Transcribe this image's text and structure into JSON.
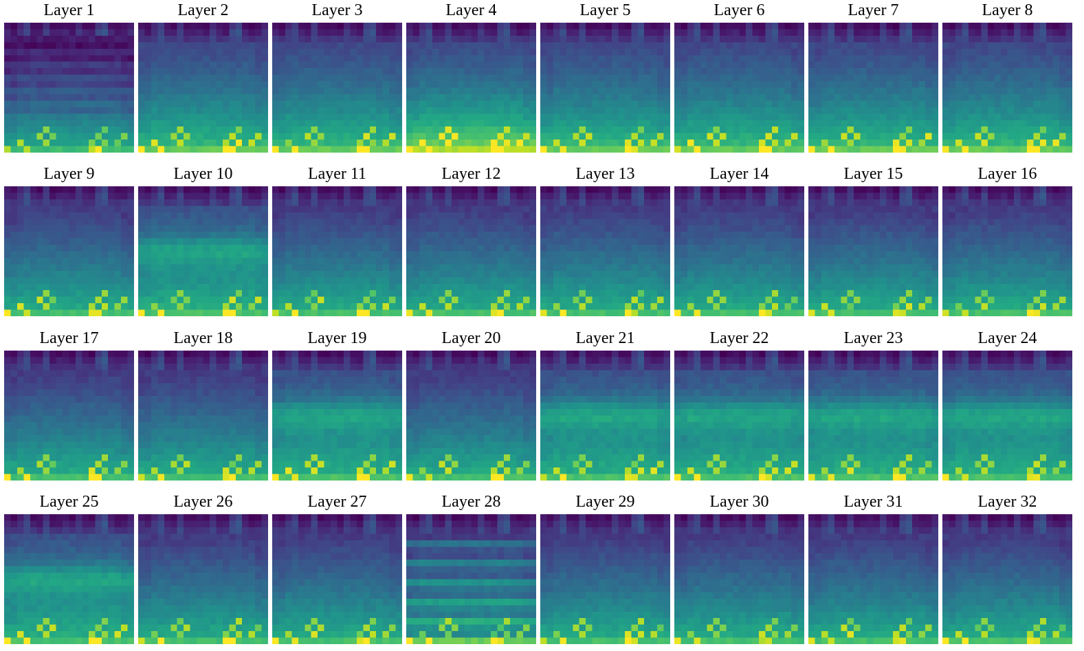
{
  "chart_data": {
    "type": "heatmap",
    "colormap": "viridis",
    "grid_size": [
      20,
      20
    ],
    "panels": [
      {
        "title": "Layer 1",
        "profile": "banded-dark-top"
      },
      {
        "title": "Layer 2",
        "profile": "smooth"
      },
      {
        "title": "Layer 3",
        "profile": "smooth"
      },
      {
        "title": "Layer 4",
        "profile": "bright-bottom"
      },
      {
        "title": "Layer 5",
        "profile": "smooth"
      },
      {
        "title": "Layer 6",
        "profile": "smooth"
      },
      {
        "title": "Layer 7",
        "profile": "smooth"
      },
      {
        "title": "Layer 8",
        "profile": "smooth"
      },
      {
        "title": "Layer 9",
        "profile": "dark-top"
      },
      {
        "title": "Layer 10",
        "profile": "mid-bright-band"
      },
      {
        "title": "Layer 11",
        "profile": "dark-top"
      },
      {
        "title": "Layer 12",
        "profile": "dark-top"
      },
      {
        "title": "Layer 13",
        "profile": "dark-top"
      },
      {
        "title": "Layer 14",
        "profile": "dark-top"
      },
      {
        "title": "Layer 15",
        "profile": "dark-top"
      },
      {
        "title": "Layer 16",
        "profile": "dark-top"
      },
      {
        "title": "Layer 17",
        "profile": "dark-top"
      },
      {
        "title": "Layer 18",
        "profile": "dark-top"
      },
      {
        "title": "Layer 19",
        "profile": "mid-bright-band"
      },
      {
        "title": "Layer 20",
        "profile": "dark-top"
      },
      {
        "title": "Layer 21",
        "profile": "mid-bright-band"
      },
      {
        "title": "Layer 22",
        "profile": "mid-bright-band"
      },
      {
        "title": "Layer 23",
        "profile": "mid-bright-band"
      },
      {
        "title": "Layer 24",
        "profile": "mid-bright-band"
      },
      {
        "title": "Layer 25",
        "profile": "mid-bright-band"
      },
      {
        "title": "Layer 26",
        "profile": "dark-top"
      },
      {
        "title": "Layer 27",
        "profile": "dark-top"
      },
      {
        "title": "Layer 28",
        "profile": "striped"
      },
      {
        "title": "Layer 29",
        "profile": "dark-top"
      },
      {
        "title": "Layer 30",
        "profile": "dark-top"
      },
      {
        "title": "Layer 31",
        "profile": "dark-top"
      },
      {
        "title": "Layer 32",
        "profile": "dark-top"
      }
    ]
  }
}
